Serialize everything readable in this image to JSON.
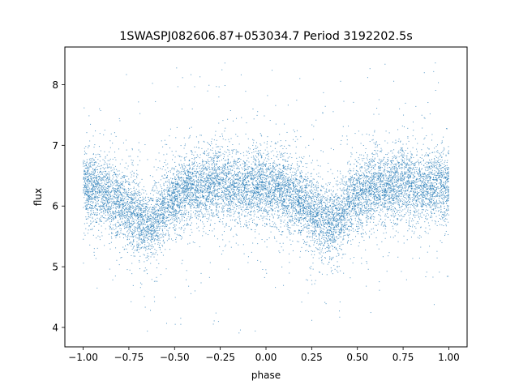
{
  "chart_data": {
    "type": "scatter",
    "title": "1SWASPJ082606.87+053034.7 Period 3192202.5s",
    "xlabel": "phase",
    "ylabel": "flux",
    "xlim": [
      -1.1,
      1.1
    ],
    "ylim": [
      3.68,
      8.62
    ],
    "xticks": [
      -1.0,
      -0.75,
      -0.5,
      -0.25,
      0.0,
      0.25,
      0.5,
      0.75,
      1.0
    ],
    "xtick_labels": [
      "−1.00",
      "−0.75",
      "−0.50",
      "−0.25",
      "0.00",
      "0.25",
      "0.50",
      "0.75",
      "1.00"
    ],
    "yticks": [
      4,
      5,
      6,
      7,
      8
    ],
    "ytick_labels": [
      "4",
      "5",
      "6",
      "7",
      "8"
    ],
    "grid": false,
    "marker_color": "#1f77b4",
    "series": [
      {
        "x_range": [
          -1.0,
          1.0
        ],
        "n_points": 12000,
        "mean_profile": {
          "phase": [
            0.0,
            0.05,
            0.1,
            0.15,
            0.2,
            0.25,
            0.3,
            0.35,
            0.4,
            0.45,
            0.5,
            0.55,
            0.6,
            0.65,
            0.7,
            0.75,
            0.8,
            0.85,
            0.9,
            0.95,
            1.0
          ],
          "flux": [
            6.3,
            6.3,
            6.25,
            6.15,
            6.05,
            5.95,
            5.8,
            5.7,
            5.8,
            6.0,
            6.15,
            6.25,
            6.3,
            6.3,
            6.35,
            6.4,
            6.35,
            6.3,
            6.3,
            6.35,
            6.3
          ]
        },
        "scatter_sigma": 0.28,
        "outlier_range": [
          3.9,
          8.4
        ]
      }
    ]
  }
}
